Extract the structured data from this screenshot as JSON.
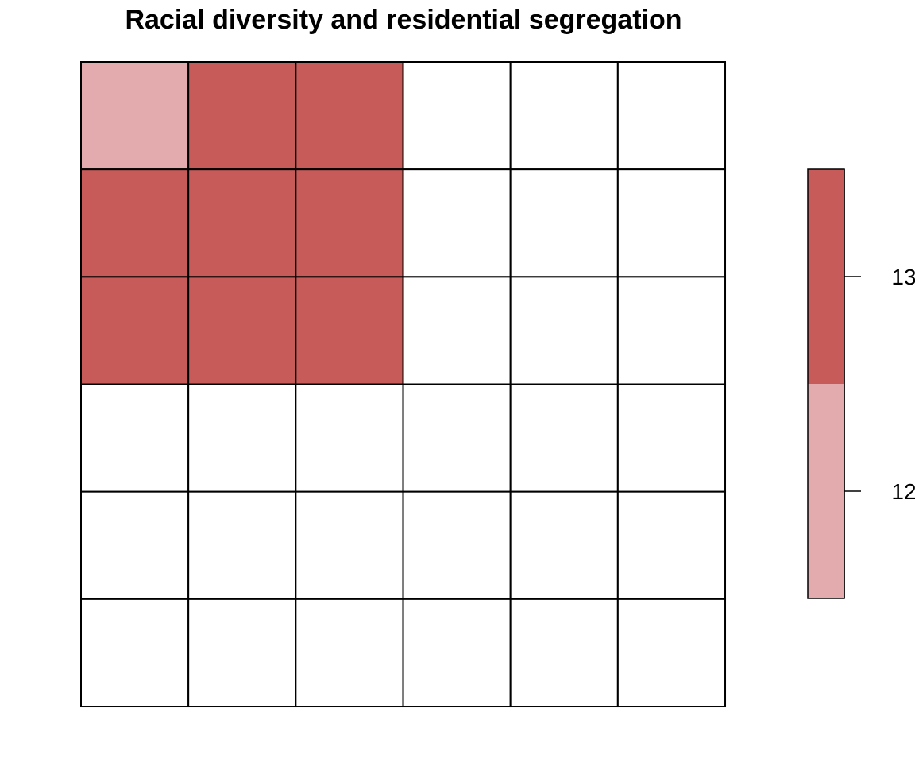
{
  "chart_data": {
    "type": "heatmap",
    "title": "Racial diversity and residential segregation",
    "rows": 6,
    "cols": 6,
    "cells": [
      [
        12,
        13,
        13,
        null,
        null,
        null
      ],
      [
        13,
        13,
        13,
        null,
        null,
        null
      ],
      [
        13,
        13,
        13,
        null,
        null,
        null
      ],
      [
        null,
        null,
        null,
        null,
        null,
        null
      ],
      [
        null,
        null,
        null,
        null,
        null,
        null
      ],
      [
        null,
        null,
        null,
        null,
        null,
        null
      ]
    ],
    "empty_color": "#ffffff",
    "legend": {
      "placement": "right",
      "range": [
        11.5,
        13.5
      ],
      "ticks": [
        12,
        13
      ],
      "bands": [
        {
          "from": 11.5,
          "to": 12.5,
          "value": 12,
          "color": "#e3abad"
        },
        {
          "from": 12.5,
          "to": 13.5,
          "value": 13,
          "color": "#c75b5a"
        }
      ]
    }
  }
}
